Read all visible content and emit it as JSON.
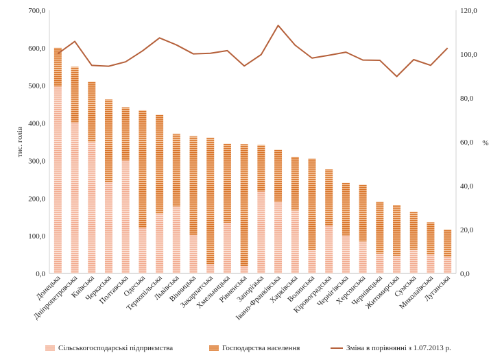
{
  "chart_data": {
    "type": "bar",
    "stacked": true,
    "ylabel": "тис. голів",
    "y2label": "%",
    "ylim": [
      0,
      700
    ],
    "y2lim": [
      0,
      120
    ],
    "yticks": [
      "0,0",
      "100,0",
      "200,0",
      "300,0",
      "400,0",
      "500,0",
      "600,0",
      "700,0"
    ],
    "y2ticks": [
      "0,0",
      "20,0",
      "40,0",
      "60,0",
      "80,0",
      "100,0",
      "120,0"
    ],
    "grid": false,
    "legend_position": "bottom",
    "categories": [
      "Донецька",
      "Дніпропетровська",
      "Київська",
      "Черкаська",
      "Полтавська",
      "Одеська",
      "Тернопільська",
      "Львівська",
      "Вінницька",
      "Закарпатська",
      "Хмельницька",
      "Рівненська",
      "Запорізька",
      "Івано-Франківська",
      "Харківська",
      "Волинська",
      "Кіровоградська",
      "Чернігівська",
      "Херсонська",
      "Чернівецька",
      "Житомирська",
      "Сумська",
      "Миколаївська",
      "Луганська"
    ],
    "series": [
      {
        "name": "Сільськогосподарські підприємства",
        "color": "#f4b7a0",
        "values": [
          497,
          402,
          350,
          243,
          300,
          122,
          159,
          178,
          102,
          25,
          135,
          20,
          218,
          190,
          168,
          62,
          127,
          101,
          85,
          53,
          47,
          63,
          50,
          44
        ]
      },
      {
        "name": "Господарства населення",
        "color": "#d9782e",
        "values": [
          103,
          148,
          160,
          220,
          142,
          312,
          263,
          193,
          263,
          336,
          210,
          324,
          124,
          139,
          142,
          243,
          150,
          140,
          151,
          137,
          135,
          101,
          86,
          73
        ]
      },
      {
        "name": "Зміна в порівнянні з 1.07.2013 р.",
        "color": "#b5603a",
        "axis": "secondary",
        "type": "line",
        "values": [
          100.2,
          105.8,
          94.9,
          94.5,
          96.5,
          101.5,
          107.4,
          104.2,
          100.1,
          100.4,
          101.6,
          94.6,
          99.8,
          113.1,
          104.1,
          98.2,
          99.5,
          100.9,
          97.3,
          97.2,
          89.8,
          97.5,
          94.9,
          102.8
        ]
      }
    ]
  }
}
